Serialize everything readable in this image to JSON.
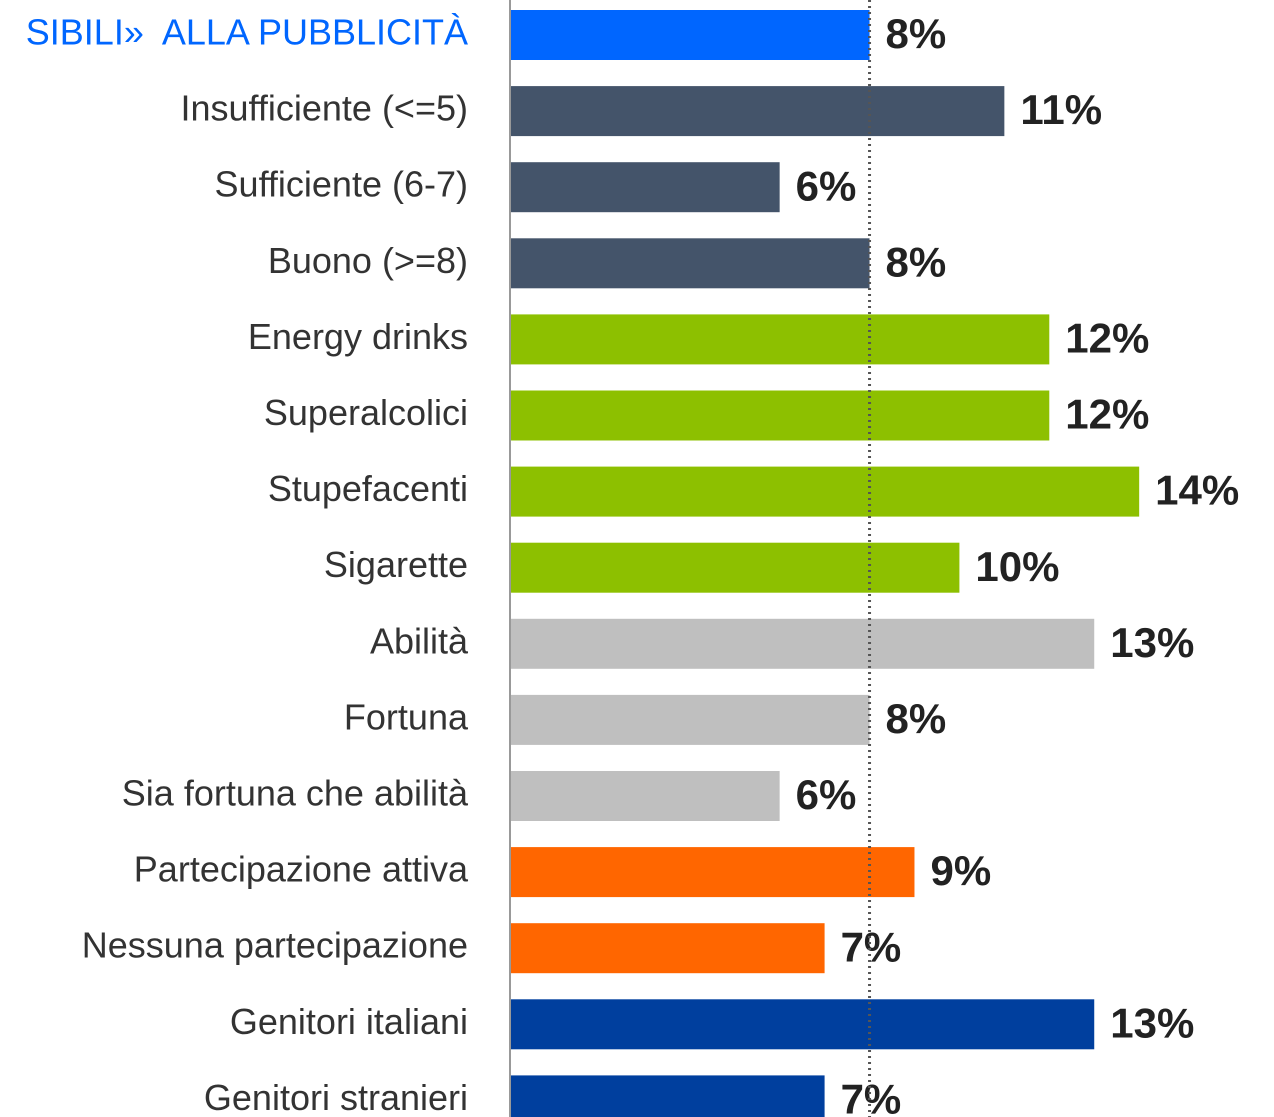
{
  "chart_data": {
    "type": "barh",
    "categories": [
      "SIBILI»  ALLA PUBBLICITÀ",
      "Insufficiente (<=5)",
      "Sufficiente (6-7)",
      "Buono (>=8)",
      "Energy drinks",
      "Superalcolici",
      "Stupefacenti",
      "Sigarette",
      "Abilità",
      "Fortuna",
      "Sia fortuna che abilità",
      "Partecipazione attiva",
      "Nessuna partecipazione",
      "Genitori italiani",
      "Genitori stranieri"
    ],
    "values": [
      8,
      11,
      6,
      8,
      12,
      12,
      14,
      10,
      13,
      8,
      6,
      9,
      7,
      13,
      7
    ],
    "value_labels": [
      "8%",
      "11%",
      "6%",
      "8%",
      "12%",
      "12%",
      "14%",
      "10%",
      "13%",
      "8%",
      "6%",
      "9%",
      "7%",
      "13%",
      "7%"
    ],
    "colors": [
      "#0066ff",
      "#44546a",
      "#44546a",
      "#44546a",
      "#8dc000",
      "#8dc000",
      "#8dc000",
      "#8dc000",
      "#bfbfbf",
      "#bfbfbf",
      "#bfbfbf",
      "#ff6600",
      "#ff6600",
      "#003f9e",
      "#003f9e"
    ],
    "reference_line": 8,
    "xlim": [
      0,
      17
    ]
  }
}
